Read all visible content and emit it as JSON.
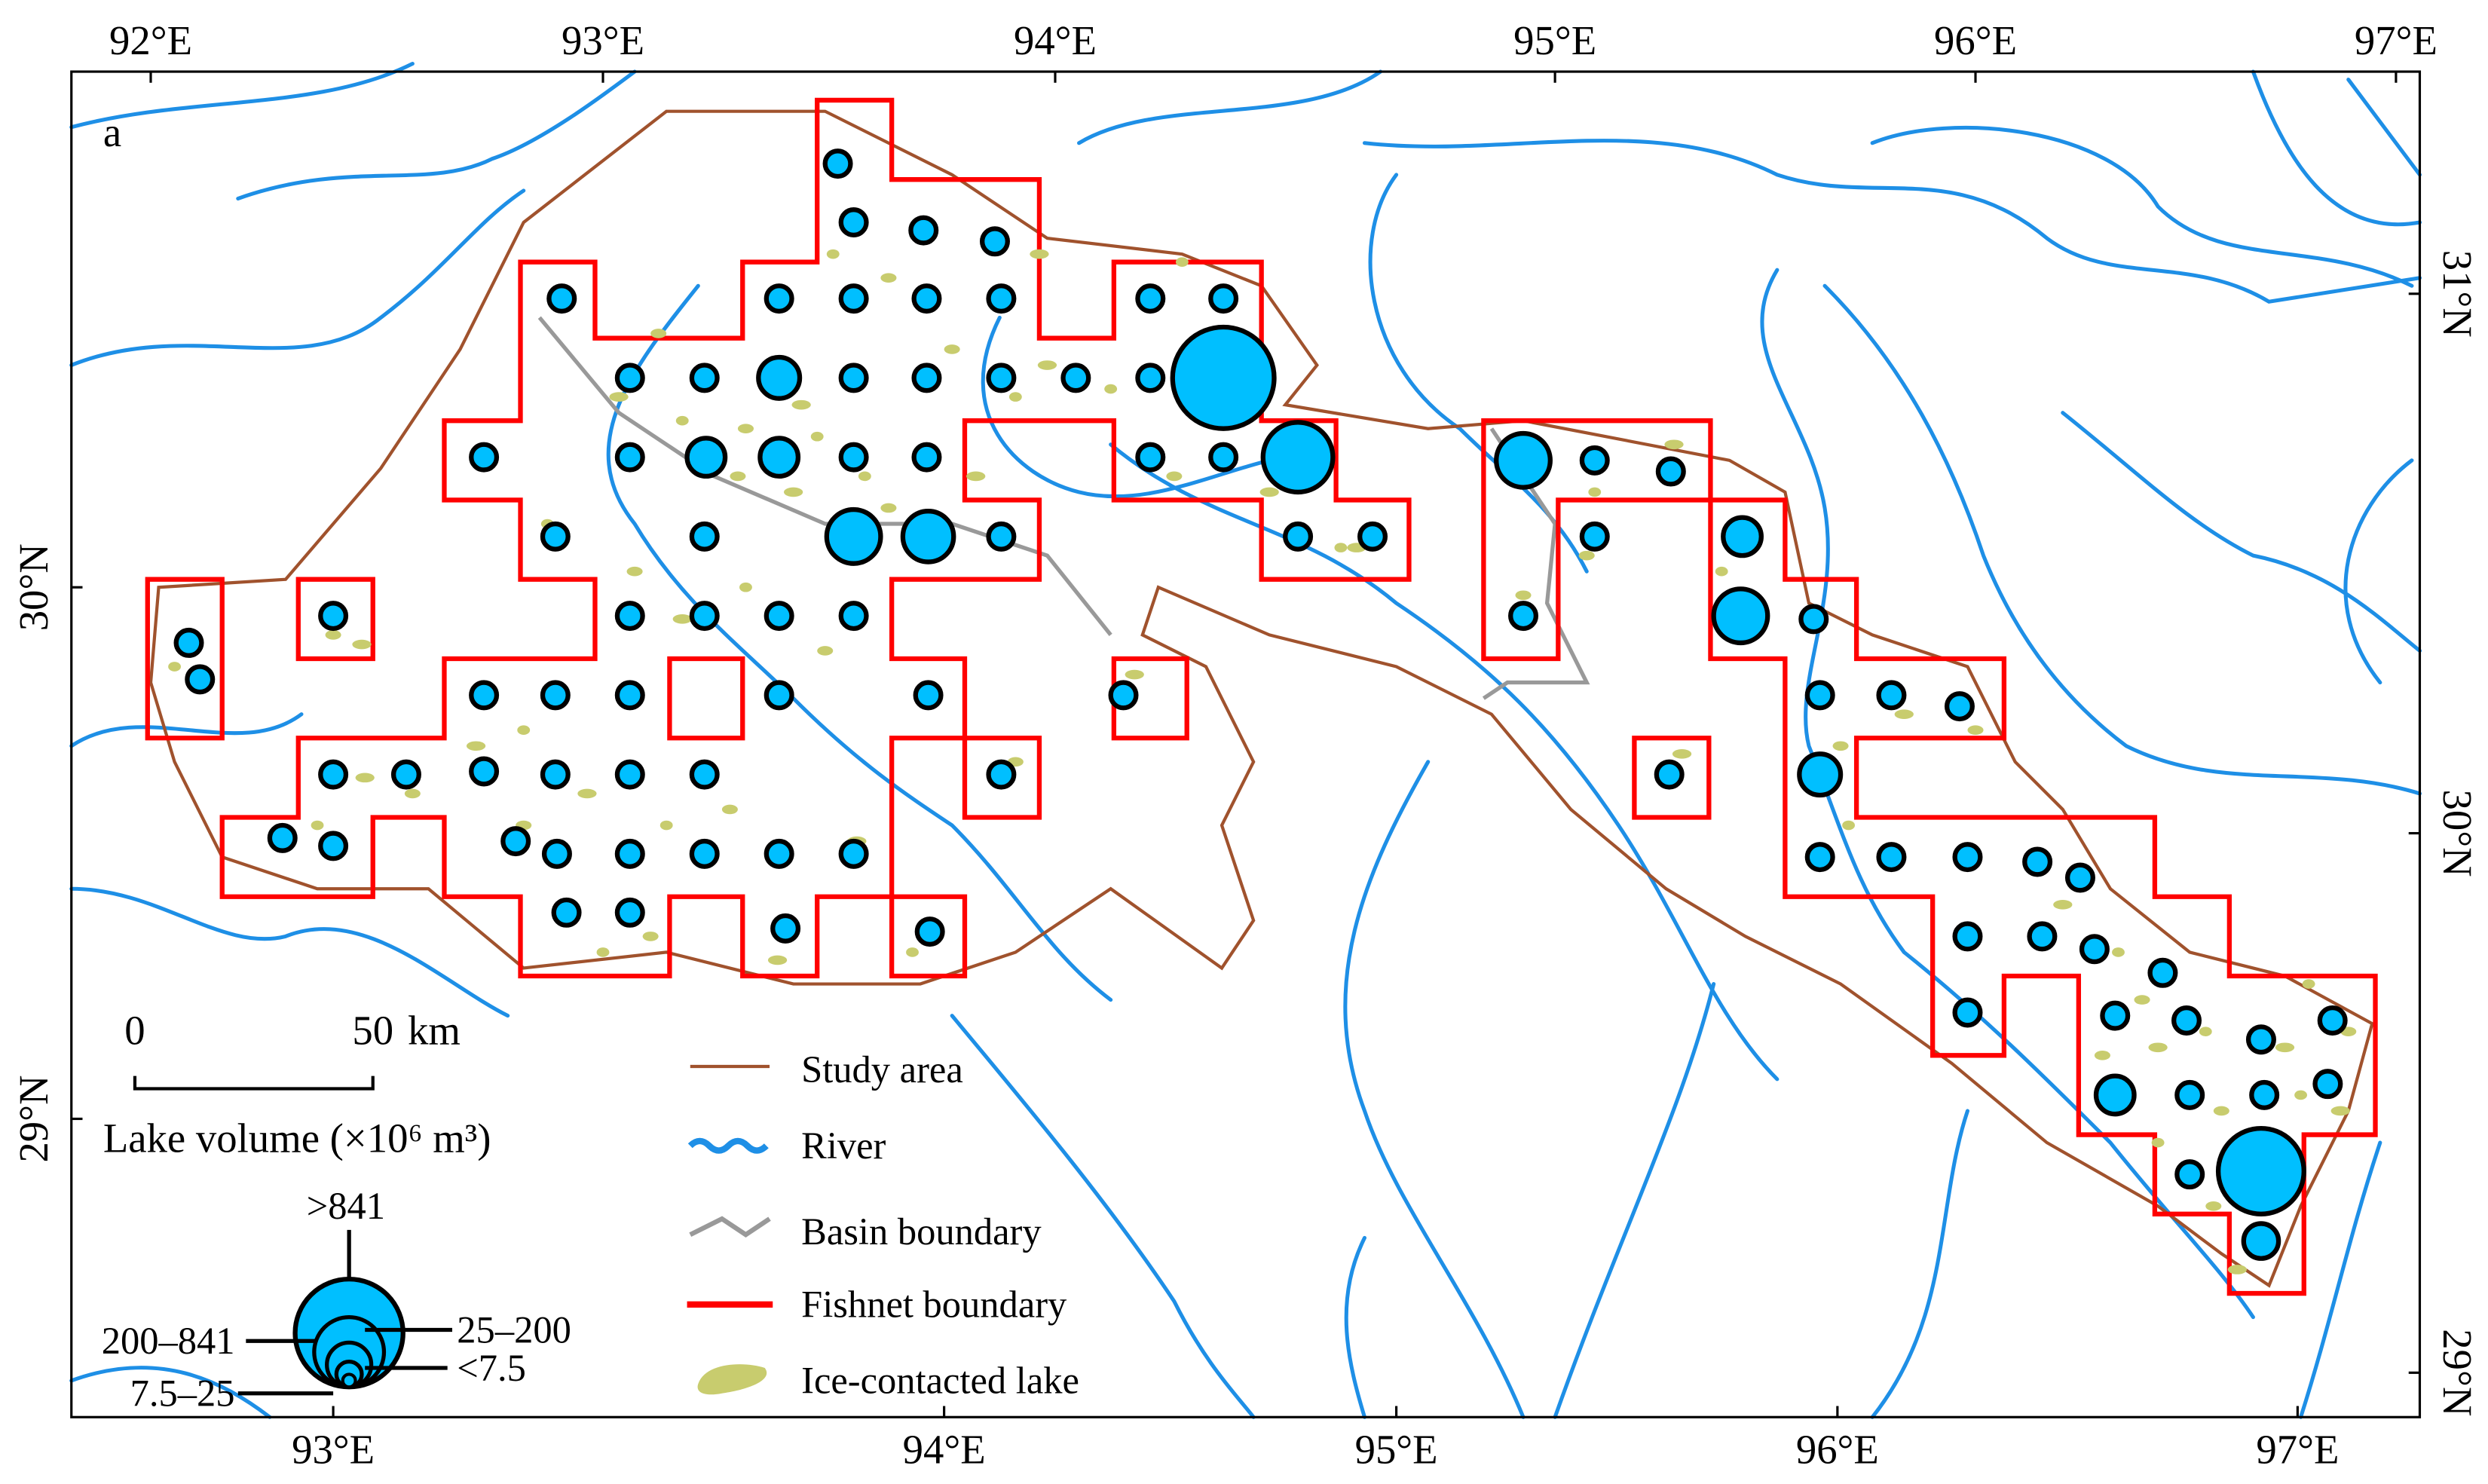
{
  "panel_label": "a",
  "lon_labels_top": [
    "92°E",
    "93°E",
    "94°E",
    "95°E",
    "96°E",
    "97°E"
  ],
  "lon_labels_bottom": [
    "93°E",
    "94°E",
    "95°E",
    "96°E",
    "97°E"
  ],
  "lat_labels_left": [
    "30°N",
    "29°N"
  ],
  "lat_labels_right": [
    "31°N",
    "30°N",
    "29°N"
  ],
  "scale_bar": {
    "start": "0",
    "end": "50",
    "unit": "km"
  },
  "size_legend": {
    "title": "Lake volume (×10⁶ m³)",
    "classes": [
      ">841",
      "200–841",
      "25–200",
      "7.5–25",
      "<7.5"
    ]
  },
  "legend": [
    "Study area",
    "River",
    "Basin boundary",
    "Fishnet boundary",
    "Ice-contacted lake"
  ]
}
